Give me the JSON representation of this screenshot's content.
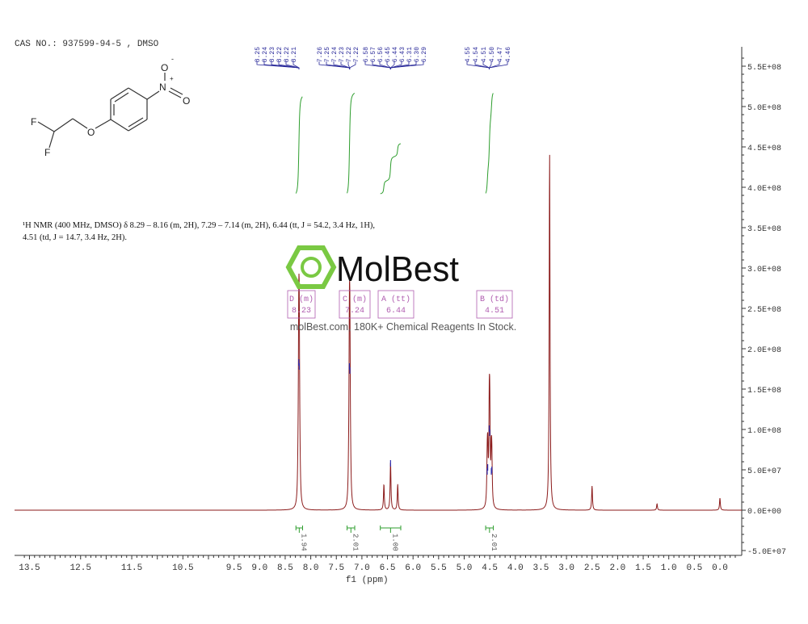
{
  "header": {
    "cas_text": "CAS NO.: 937599-94-5 , DMSO"
  },
  "description": {
    "line1": "¹H NMR (400 MHz, DMSO) δ 8.29 – 8.16 (m, 2H), 7.29 – 7.14 (m, 2H), 6.44 (tt, J = 54.2, 3.4 Hz, 1H),",
    "line2": "4.51 (td, J = 14.7, 3.4 Hz, 2H)."
  },
  "molecule": {
    "atoms": [
      "F",
      "F",
      "O",
      "N",
      "+",
      "O",
      "-",
      "O"
    ]
  },
  "watermark": {
    "logo_text": "MolBest",
    "tagline": "molBest.com, 180K+ Chemical Reagents In Stock.",
    "logo_color": "#7ac943"
  },
  "colors": {
    "spectrum": "#8b1a1a",
    "integral": "#2e9e2e",
    "peak_label": "#2a2a9a",
    "multiplet_box": "#b05db0"
  },
  "chart_data": {
    "type": "line",
    "title": "",
    "xlabel": "f1 (ppm)",
    "ylabel": "",
    "xlim": [
      13.7,
      -0.3
    ],
    "ylim": [
      -50000000,
      560000000
    ],
    "x_reversed": true,
    "grid": false,
    "x_ticks": [
      "13.5",
      "12.5",
      "11.5",
      "10.5",
      "9.5",
      "9.0",
      "8.5",
      "8.0",
      "7.5",
      "7.0",
      "6.5",
      "6.0",
      "5.5",
      "5.0",
      "4.5",
      "4.0",
      "3.5",
      "3.0",
      "2.5",
      "2.0",
      "1.5",
      "1.0",
      "0.5",
      "0.0"
    ],
    "y_ticks": [
      "5.5E+08",
      "5.0E+08",
      "4.5E+08",
      "4.0E+08",
      "3.5E+08",
      "3.0E+08",
      "2.5E+08",
      "2.0E+08",
      "1.5E+08",
      "1.0E+08",
      "5.0E+07",
      "0.0E+00",
      "-5.0E+07"
    ],
    "y_tick_values": [
      550000000,
      500000000,
      450000000,
      400000000,
      350000000,
      300000000,
      250000000,
      200000000,
      150000000,
      100000000,
      50000000,
      0,
      -50000000
    ],
    "peaks": [
      {
        "ppm": 8.25,
        "intensity": 20000000
      },
      {
        "ppm": 8.235,
        "intensity": 185000000
      },
      {
        "ppm": 8.225,
        "intensity": 180000000
      },
      {
        "ppm": 8.21,
        "intensity": 20000000
      },
      {
        "ppm": 7.26,
        "intensity": 20000000
      },
      {
        "ppm": 7.245,
        "intensity": 180000000
      },
      {
        "ppm": 7.235,
        "intensity": 175000000
      },
      {
        "ppm": 7.22,
        "intensity": 20000000
      },
      {
        "ppm": 6.57,
        "intensity": 32000000
      },
      {
        "ppm": 6.44,
        "intensity": 60000000
      },
      {
        "ppm": 6.3,
        "intensity": 32000000
      },
      {
        "ppm": 4.55,
        "intensity": 50000000
      },
      {
        "ppm": 4.54,
        "intensity": 55000000
      },
      {
        "ppm": 4.51,
        "intensity": 103000000
      },
      {
        "ppm": 4.5,
        "intensity": 98000000
      },
      {
        "ppm": 4.47,
        "intensity": 50000000
      },
      {
        "ppm": 4.46,
        "intensity": 52000000
      },
      {
        "ppm": 3.33,
        "intensity": 442000000
      },
      {
        "ppm": 2.5,
        "intensity": 30000000
      },
      {
        "ppm": 1.23,
        "intensity": 8000000
      },
      {
        "ppm": 0.0,
        "intensity": 15000000
      }
    ],
    "peak_labels": [
      {
        "group": 0,
        "ppm_target": 8.23,
        "labels": [
          "8.25",
          "8.24",
          "8.23",
          "8.22",
          "8.22",
          "8.21"
        ]
      },
      {
        "group": 1,
        "ppm_target": 7.24,
        "labels": [
          "7.26",
          "7.25",
          "7.24",
          "7.23",
          "7.22",
          "7.22"
        ]
      },
      {
        "group": 2,
        "ppm_target": 6.44,
        "labels": [
          "6.58",
          "6.57",
          "6.56",
          "6.45",
          "6.44",
          "6.43",
          "6.31",
          "6.30",
          "6.29"
        ]
      },
      {
        "group": 3,
        "ppm_target": 4.51,
        "labels": [
          "4.55",
          "4.54",
          "4.51",
          "4.50",
          "4.47",
          "4.46"
        ]
      }
    ],
    "integrals": [
      {
        "from": 8.29,
        "to": 8.16,
        "value": "1.94",
        "height_value": 1.94
      },
      {
        "from": 7.29,
        "to": 7.14,
        "value": "2.01",
        "height_value": 2.01
      },
      {
        "from": 6.64,
        "to": 6.24,
        "value": "1.00",
        "height_value": 1.0
      },
      {
        "from": 4.58,
        "to": 4.43,
        "value": "2.01",
        "height_value": 2.01
      }
    ],
    "multiplets": [
      {
        "label": "D (m)",
        "shift": "8.23"
      },
      {
        "label": "C (m)",
        "shift": "7.24"
      },
      {
        "label": "A (tt)",
        "shift": "6.44"
      },
      {
        "label": "B (td)",
        "shift": "4.51"
      }
    ]
  }
}
